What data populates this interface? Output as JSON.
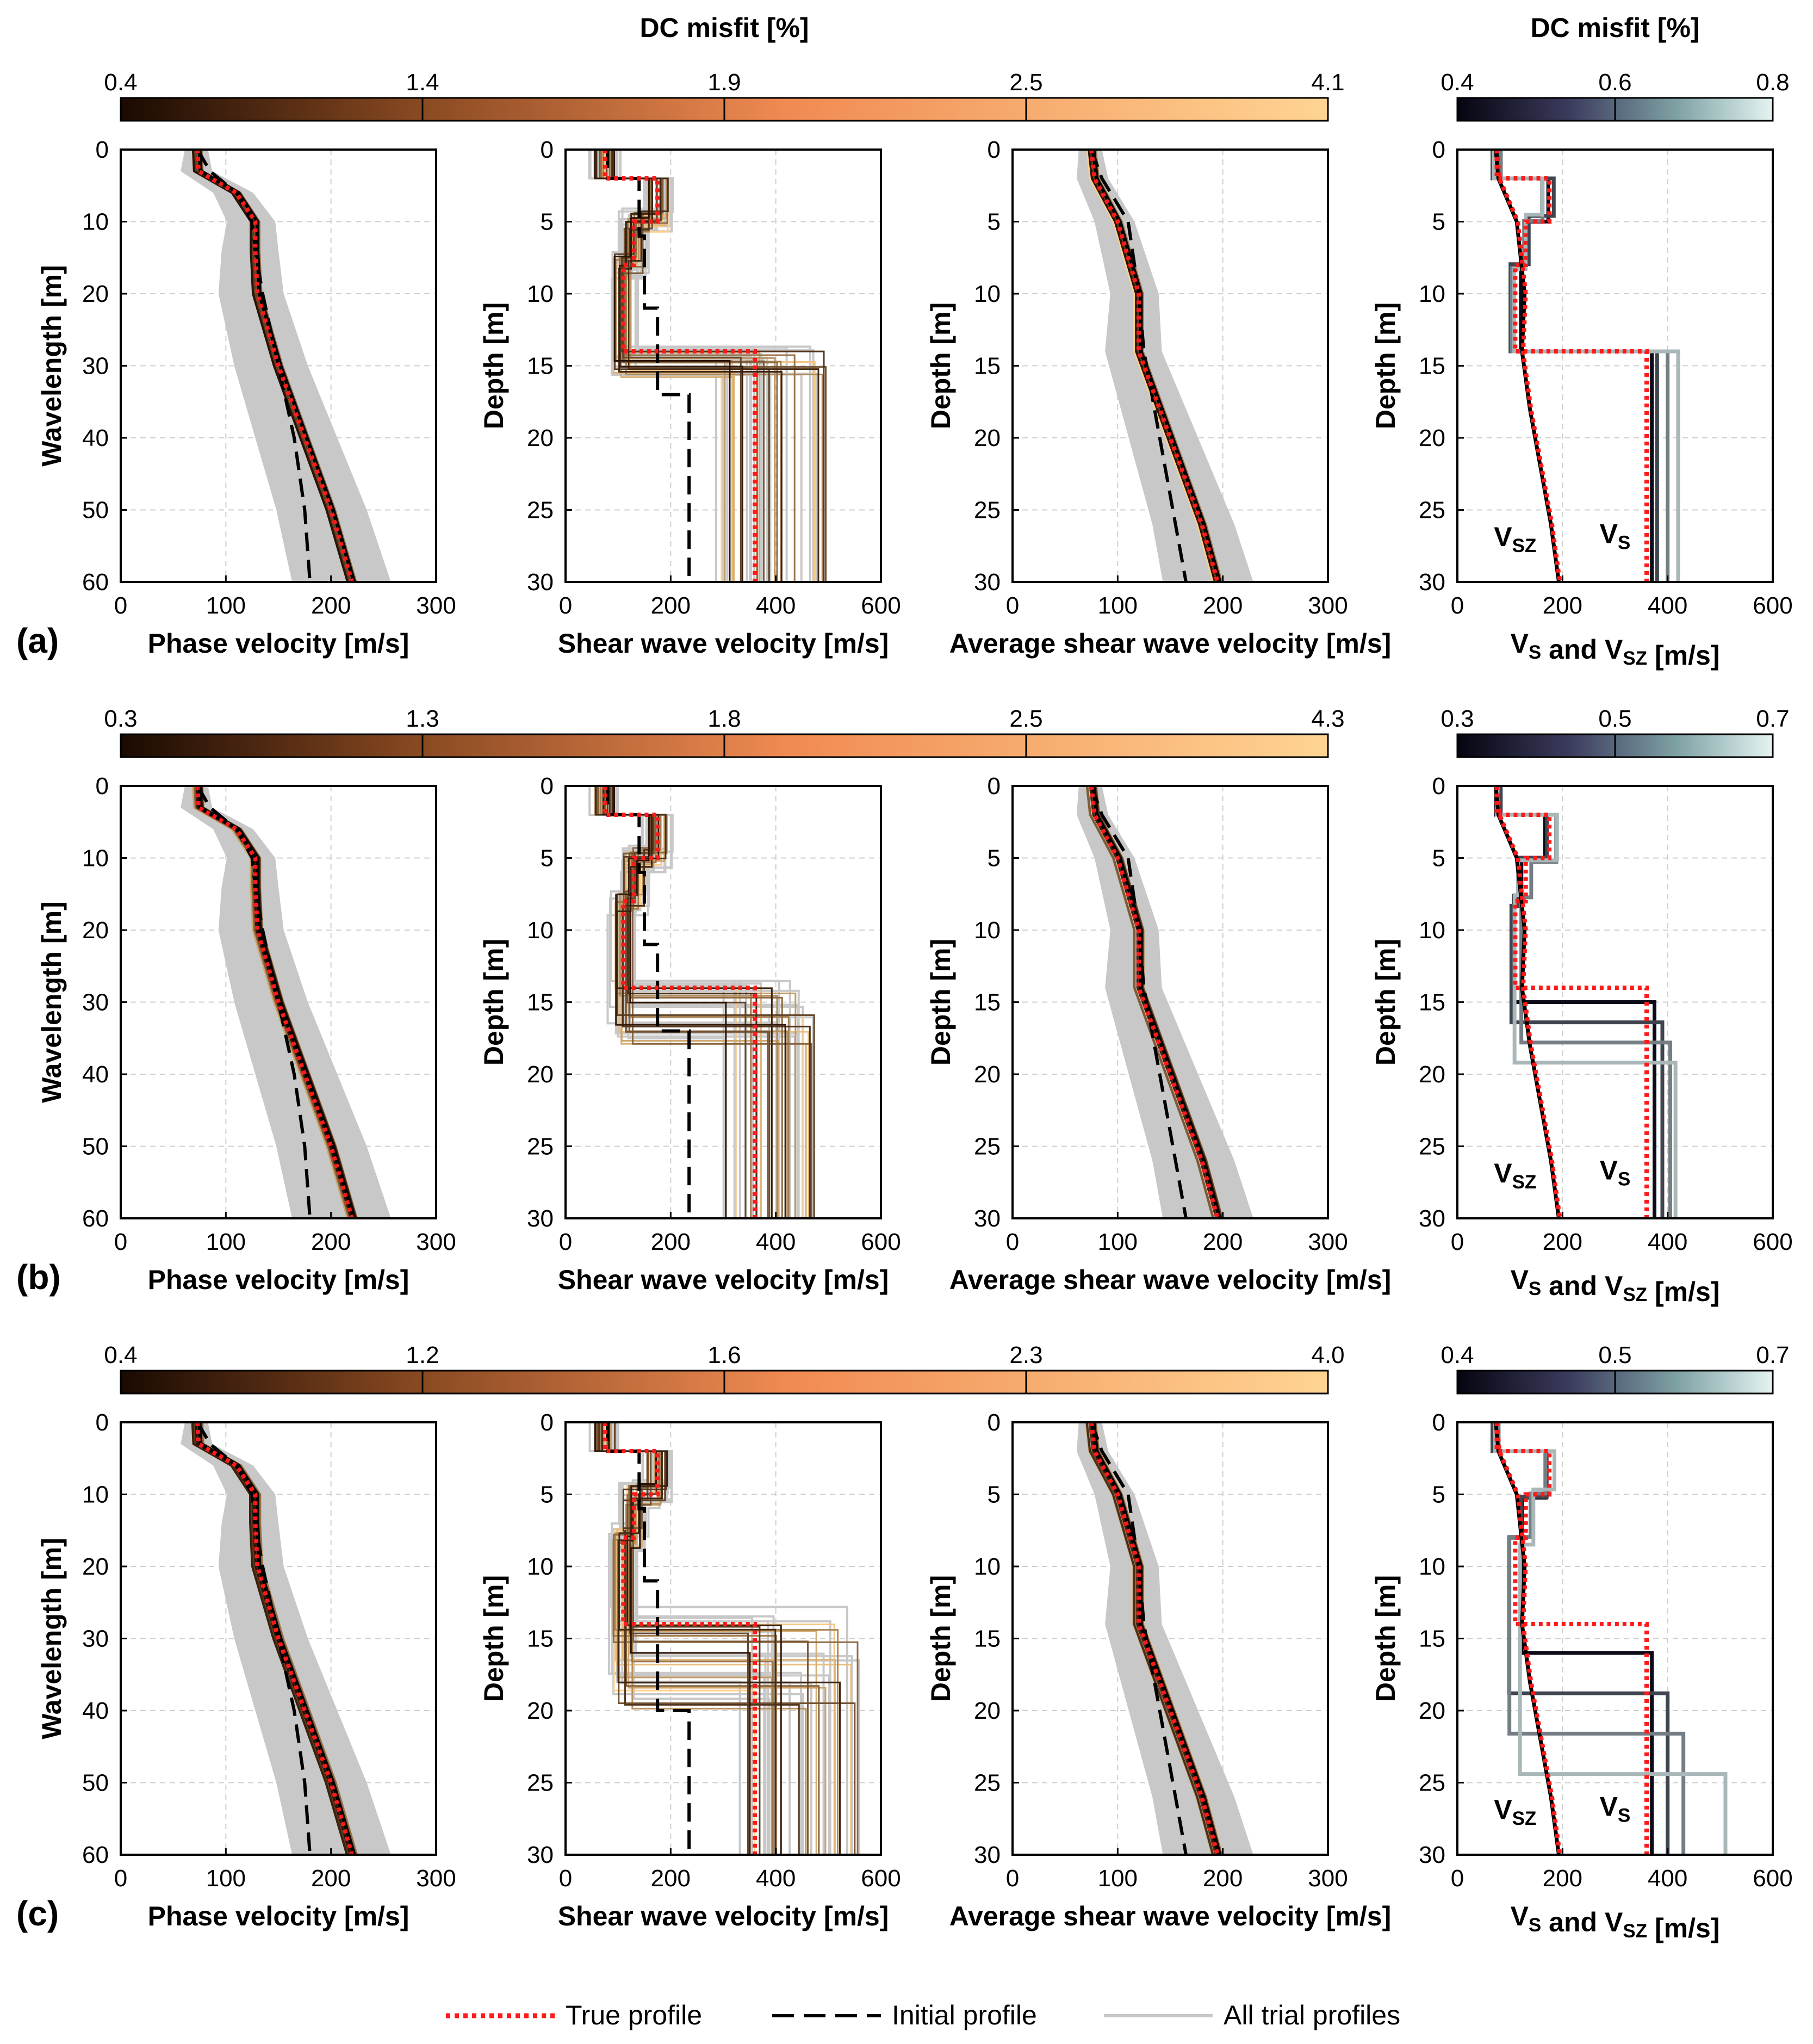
{
  "colorbar_main_title": "DC misfit [%]",
  "colorbar_side_title": "DC misfit [%]",
  "colors": {
    "true_profile": "#ff1a1a",
    "initial_profile": "#000000",
    "trial_gray": "#c8c8c8",
    "misfit_dark": "#2a1205",
    "misfit_light": "#ffd08a",
    "side_dark": "#0b0b18",
    "side_light": "#dff0ef"
  },
  "legend": {
    "true_profile": "True profile",
    "initial_profile": "Initial profile",
    "all_trial_profiles": "All trial profiles"
  },
  "chart_data": [
    {
      "row": "a",
      "row_label": "(a)",
      "main_colorbar_ticks": [
        "0.4",
        "1.4",
        "1.9",
        "2.5",
        "4.1"
      ],
      "side_colorbar_ticks": [
        "0.4",
        "0.6",
        "0.8"
      ],
      "panels": [
        {
          "type": "line",
          "xlabel": "Phase velocity [m/s]",
          "ylabel": "Wavelength [m]",
          "xlim": [
            0,
            300
          ],
          "ylim": [
            60,
            0
          ],
          "xticks": [
            "0",
            "100",
            "200",
            "300"
          ],
          "yticks": [
            "0",
            "10",
            "20",
            "30",
            "40",
            "50",
            "60"
          ],
          "true_curve": {
            "x": [
              73,
              74,
              110,
              128,
              128,
              130,
              150,
              175,
              200,
              220
            ],
            "y": [
              0,
              3,
              6,
              10,
              14,
              20,
              30,
              40,
              50,
              60
            ]
          },
          "initial_curve": {
            "x": [
              73,
              85,
              110,
              125,
              128,
              135,
              150,
              165,
              175,
              180
            ],
            "y": [
              0,
              3,
              6,
              10,
              14,
              20,
              30,
              40,
              50,
              60
            ]
          }
        },
        {
          "type": "step",
          "xlabel": "Shear wave velocity [m/s]",
          "ylabel": "Depth [m]",
          "xlim": [
            0,
            600
          ],
          "ylim": [
            30,
            0
          ],
          "xticks": [
            "0",
            "200",
            "400",
            "600"
          ],
          "yticks": [
            "0",
            "5",
            "10",
            "15",
            "20",
            "25",
            "30"
          ],
          "true_profile": {
            "vs": [
              75,
              175,
              130,
              110,
              360
            ],
            "bottom": [
              2,
              5,
              8,
              14,
              30
            ]
          },
          "initial_profile": {
            "vs": [
              80,
              140,
              150,
              175,
              235
            ],
            "bottom": [
              2,
              6,
              11,
              17,
              30
            ]
          },
          "halfspace_range": [
            280,
            500
          ]
        },
        {
          "type": "line",
          "xlabel": "Average shear wave velocity [m/s]",
          "ylabel": "Depth [m]",
          "xlim": [
            0,
            300
          ],
          "ylim": [
            30,
            0
          ],
          "xticks": [
            "0",
            "100",
            "200",
            "300"
          ],
          "yticks": [
            "0",
            "5",
            "10",
            "15",
            "20",
            "25",
            "30"
          ],
          "true_curve": {
            "x": [
              75,
              78,
              100,
              120,
              120,
              140,
              160,
              180,
              195
            ],
            "y": [
              0,
              2,
              5,
              10,
              14,
              18,
              22,
              26,
              30
            ]
          },
          "initial_curve": {
            "x": [
              75,
              85,
              110,
              120,
              125,
              135,
              145,
              155,
              165
            ],
            "y": [
              0,
              2,
              5,
              10,
              14,
              18,
              22,
              26,
              30
            ]
          }
        },
        {
          "type": "step",
          "xlabel": "VS and VSZ [m/s]",
          "ylabel": "Depth [m]",
          "xlim": [
            0,
            600
          ],
          "ylim": [
            30,
            0
          ],
          "xticks": [
            "0",
            "200",
            "400",
            "600"
          ],
          "yticks": [
            "0",
            "5",
            "10",
            "15",
            "20",
            "25",
            "30"
          ],
          "label_vsz": "VSZ",
          "label_vs": "VS",
          "true_profile": {
            "vs": [
              75,
              175,
              130,
              110,
              360
            ],
            "bottom": [
              2,
              5,
              8,
              14,
              30
            ]
          },
          "vsz_curve": {
            "x": [
              75,
              80,
              115,
              130,
              125,
              140,
              160,
              180,
              195
            ],
            "y": [
              0,
              2,
              5,
              10,
              14,
              18,
              22,
              26,
              30
            ]
          },
          "halfspace_values": [
            370,
            380,
            400,
            420
          ]
        }
      ]
    },
    {
      "row": "b",
      "row_label": "(b)",
      "main_colorbar_ticks": [
        "0.3",
        "1.3",
        "1.8",
        "2.5",
        "4.3"
      ],
      "side_colorbar_ticks": [
        "0.3",
        "0.5",
        "0.7"
      ],
      "panels": [
        {
          "type": "line",
          "xlabel": "Phase velocity [m/s]",
          "ylabel": "Wavelength [m]",
          "xlim": [
            0,
            300
          ],
          "ylim": [
            60,
            0
          ],
          "xticks": [
            "0",
            "100",
            "200",
            "300"
          ],
          "yticks": [
            "0",
            "10",
            "20",
            "30",
            "40",
            "50",
            "60"
          ],
          "true_curve": {
            "x": [
              73,
              74,
              110,
              128,
              128,
              130,
              150,
              175,
              200,
              220
            ],
            "y": [
              0,
              3,
              6,
              10,
              14,
              20,
              30,
              40,
              50,
              60
            ]
          },
          "initial_curve": {
            "x": [
              73,
              85,
              110,
              125,
              128,
              135,
              150,
              165,
              175,
              180
            ],
            "y": [
              0,
              3,
              6,
              10,
              14,
              20,
              30,
              40,
              50,
              60
            ]
          }
        },
        {
          "type": "step",
          "xlabel": "Shear wave velocity [m/s]",
          "ylabel": "Depth [m]",
          "xlim": [
            0,
            600
          ],
          "ylim": [
            30,
            0
          ],
          "xticks": [
            "0",
            "200",
            "400",
            "600"
          ],
          "yticks": [
            "0",
            "5",
            "10",
            "15",
            "20",
            "25",
            "30"
          ],
          "true_profile": {
            "vs": [
              75,
              175,
              130,
              110,
              360
            ],
            "bottom": [
              2,
              5,
              8,
              14,
              30
            ]
          },
          "initial_profile": {
            "vs": [
              80,
              140,
              150,
              175,
              235
            ],
            "bottom": [
              2,
              6,
              11,
              17,
              30
            ]
          },
          "halfspace_range": [
            300,
            480
          ]
        },
        {
          "type": "line",
          "xlabel": "Average shear wave velocity [m/s]",
          "ylabel": "Depth [m]",
          "xlim": [
            0,
            300
          ],
          "ylim": [
            30,
            0
          ],
          "xticks": [
            "0",
            "100",
            "200",
            "300"
          ],
          "yticks": [
            "0",
            "5",
            "10",
            "15",
            "20",
            "25",
            "30"
          ],
          "true_curve": {
            "x": [
              75,
              78,
              100,
              120,
              120,
              140,
              160,
              180,
              195
            ],
            "y": [
              0,
              2,
              5,
              10,
              14,
              18,
              22,
              26,
              30
            ]
          },
          "initial_curve": {
            "x": [
              75,
              85,
              110,
              120,
              125,
              135,
              145,
              155,
              165
            ],
            "y": [
              0,
              2,
              5,
              10,
              14,
              18,
              22,
              26,
              30
            ]
          }
        },
        {
          "type": "step",
          "xlabel": "VS and VSZ [m/s]",
          "ylabel": "Depth [m]",
          "xlim": [
            0,
            600
          ],
          "ylim": [
            30,
            0
          ],
          "xticks": [
            "0",
            "200",
            "400",
            "600"
          ],
          "yticks": [
            "0",
            "5",
            "10",
            "15",
            "20",
            "25",
            "30"
          ],
          "label_vsz": "VSZ",
          "label_vs": "VS",
          "true_profile": {
            "vs": [
              75,
              175,
              130,
              110,
              360
            ],
            "bottom": [
              2,
              5,
              8,
              14,
              30
            ]
          },
          "vsz_curve": {
            "x": [
              75,
              80,
              115,
              130,
              125,
              140,
              160,
              180,
              195
            ],
            "y": [
              0,
              2,
              5,
              10,
              14,
              18,
              22,
              26,
              30
            ]
          },
          "halfspace_values": [
            375,
            390,
            405,
            415
          ]
        }
      ]
    },
    {
      "row": "c",
      "row_label": "(c)",
      "main_colorbar_ticks": [
        "0.4",
        "1.2",
        "1.6",
        "2.3",
        "4.0"
      ],
      "side_colorbar_ticks": [
        "0.4",
        "0.5",
        "0.7"
      ],
      "panels": [
        {
          "type": "line",
          "xlabel": "Phase velocity [m/s]",
          "ylabel": "Wavelength [m]",
          "xlim": [
            0,
            300
          ],
          "ylim": [
            60,
            0
          ],
          "xticks": [
            "0",
            "100",
            "200",
            "300"
          ],
          "yticks": [
            "0",
            "10",
            "20",
            "30",
            "40",
            "50",
            "60"
          ],
          "true_curve": {
            "x": [
              73,
              74,
              110,
              128,
              128,
              130,
              150,
              175,
              200,
              220
            ],
            "y": [
              0,
              3,
              6,
              10,
              14,
              20,
              30,
              40,
              50,
              60
            ]
          },
          "initial_curve": {
            "x": [
              73,
              85,
              110,
              125,
              128,
              135,
              150,
              165,
              175,
              180
            ],
            "y": [
              0,
              3,
              6,
              10,
              14,
              20,
              30,
              40,
              50,
              60
            ]
          }
        },
        {
          "type": "step",
          "xlabel": "Shear wave velocity [m/s]",
          "ylabel": "Depth [m]",
          "xlim": [
            0,
            600
          ],
          "ylim": [
            30,
            0
          ],
          "xticks": [
            "0",
            "200",
            "400",
            "600"
          ],
          "yticks": [
            "0",
            "5",
            "10",
            "15",
            "20",
            "25",
            "30"
          ],
          "true_profile": {
            "vs": [
              75,
              175,
              130,
              110,
              360
            ],
            "bottom": [
              2,
              5,
              8,
              14,
              30
            ]
          },
          "initial_profile": {
            "vs": [
              80,
              140,
              150,
              175,
              235
            ],
            "bottom": [
              2,
              6,
              11,
              20,
              30
            ]
          },
          "halfspace_range": [
            330,
            560
          ]
        },
        {
          "type": "line",
          "xlabel": "Average shear wave velocity [m/s]",
          "ylabel": "Depth [m]",
          "xlim": [
            0,
            300
          ],
          "ylim": [
            30,
            0
          ],
          "xticks": [
            "0",
            "100",
            "200",
            "300"
          ],
          "yticks": [
            "0",
            "5",
            "10",
            "15",
            "20",
            "25",
            "30"
          ],
          "true_curve": {
            "x": [
              75,
              78,
              100,
              120,
              120,
              140,
              160,
              180,
              195
            ],
            "y": [
              0,
              2,
              5,
              10,
              14,
              18,
              22,
              26,
              30
            ]
          },
          "initial_curve": {
            "x": [
              75,
              85,
              110,
              120,
              125,
              135,
              145,
              155,
              165
            ],
            "y": [
              0,
              2,
              5,
              10,
              14,
              18,
              22,
              26,
              30
            ]
          }
        },
        {
          "type": "step",
          "xlabel": "VS and VSZ [m/s]",
          "ylabel": "Depth [m]",
          "xlim": [
            0,
            600
          ],
          "ylim": [
            30,
            0
          ],
          "xticks": [
            "0",
            "200",
            "400",
            "600"
          ],
          "yticks": [
            "0",
            "5",
            "10",
            "15",
            "20",
            "25",
            "30"
          ],
          "label_vsz": "VSZ",
          "label_vs": "VS",
          "true_profile": {
            "vs": [
              75,
              175,
              130,
              110,
              360
            ],
            "bottom": [
              2,
              5,
              8,
              14,
              30
            ]
          },
          "vsz_curve": {
            "x": [
              75,
              80,
              115,
              130,
              125,
              140,
              160,
              180,
              195
            ],
            "y": [
              0,
              2,
              5,
              10,
              14,
              18,
              22,
              26,
              30
            ]
          },
          "halfspace_values": [
            370,
            400,
            430,
            510
          ]
        }
      ]
    }
  ]
}
